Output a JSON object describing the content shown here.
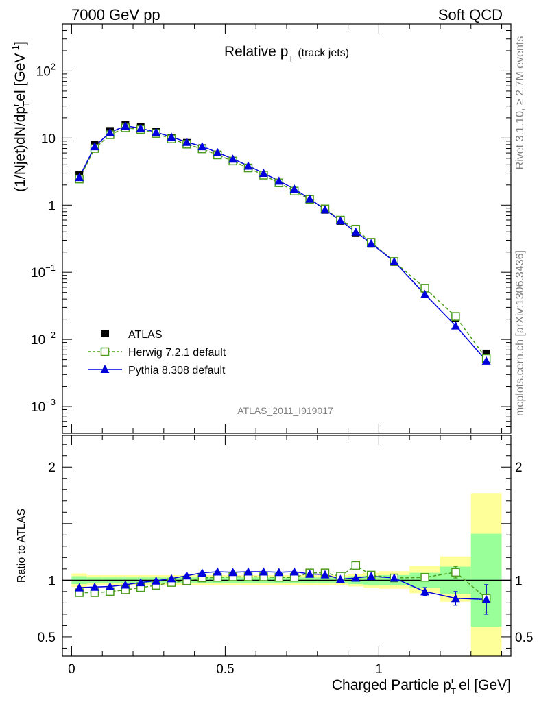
{
  "header": {
    "left": "7000 GeV pp",
    "right": "Soft QCD"
  },
  "side": {
    "rivet": "Rivet 3.1.10, ≥ 2.7M events",
    "mcplots": "mcplots.cern.ch [arXiv:1306.3436]"
  },
  "chart_data": {
    "type": "scatter",
    "title_main": "Relative p",
    "title_sub": "T",
    "title_extra": "(track jets)",
    "analysis_id": "ATLAS_2011_I919017",
    "ylabel": "(1/Njet)dN/dp",
    "ylabel_sub": "T",
    "ylabel_sup": "r",
    "ylabel_tail": "el [GeV",
    "ylabel_unit_sup": "-1",
    "ylabel_close": "]",
    "ratio_ylabel": "Ratio to ATLAS",
    "xlabel": "Charged Particle p",
    "xlabel_sub": "T",
    "xlabel_sup": "r",
    "xlabel_tail": "el [GeV]",
    "xlim": [
      -0.03,
      1.43
    ],
    "ylim_log": [
      0.0004,
      500
    ],
    "ratio_ylim": [
      0.33,
      2.28
    ],
    "x_ticks": [
      {
        "value": 0,
        "label": "0"
      },
      {
        "value": 0.5,
        "label": "0.5"
      },
      {
        "value": 1,
        "label": "1"
      }
    ],
    "y_ticks": [
      {
        "value": 100,
        "base": "10",
        "exp": "2"
      },
      {
        "value": 10,
        "base": "10",
        "exp": ""
      },
      {
        "value": 1,
        "base": "1",
        "exp": ""
      },
      {
        "value": 0.1,
        "base": "10",
        "exp": "−1"
      },
      {
        "value": 0.01,
        "base": "10",
        "exp": "−2"
      },
      {
        "value": 0.001,
        "base": "10",
        "exp": "−3"
      }
    ],
    "ratio_ticks": [
      {
        "value": 2,
        "label": "2"
      },
      {
        "value": 1,
        "label": "1"
      },
      {
        "value": 0.5,
        "label": "0.5"
      }
    ],
    "x": [
      0.025,
      0.075,
      0.125,
      0.175,
      0.225,
      0.275,
      0.325,
      0.375,
      0.425,
      0.475,
      0.525,
      0.575,
      0.625,
      0.675,
      0.725,
      0.775,
      0.825,
      0.875,
      0.925,
      0.975,
      1.05,
      1.15,
      1.25,
      1.35
    ],
    "x_bins": [
      0.0,
      0.05,
      0.1,
      0.15,
      0.2,
      0.25,
      0.3,
      0.35,
      0.4,
      0.45,
      0.5,
      0.55,
      0.6,
      0.65,
      0.7,
      0.75,
      0.8,
      0.85,
      0.9,
      0.95,
      1.0,
      1.1,
      1.2,
      1.3,
      1.4
    ],
    "series": [
      {
        "name": "ATLAS",
        "color": "#000000",
        "style": "filled-square",
        "values": [
          2.8,
          8.0,
          12.8,
          15.8,
          14.6,
          12.5,
          10.2,
          8.5,
          7.1,
          5.7,
          4.6,
          3.6,
          2.8,
          2.15,
          1.63,
          1.18,
          0.85,
          0.58,
          0.39,
          0.265,
          0.142,
          0.057,
          0.021,
          0.0062
        ],
        "band_stat_low": [
          0.965,
          0.975,
          0.975,
          0.975,
          0.975,
          0.975,
          0.975,
          0.975,
          0.975,
          0.975,
          0.975,
          0.975,
          0.975,
          0.975,
          0.975,
          0.975,
          0.975,
          0.975,
          0.965,
          0.96,
          0.955,
          0.935,
          0.88,
          0.59
        ],
        "band_stat_high": [
          1.035,
          1.025,
          1.025,
          1.025,
          1.025,
          1.025,
          1.025,
          1.025,
          1.025,
          1.025,
          1.025,
          1.025,
          1.025,
          1.025,
          1.025,
          1.025,
          1.025,
          1.025,
          1.035,
          1.04,
          1.045,
          1.065,
          1.12,
          1.41
        ],
        "band_tot_low": [
          0.94,
          0.955,
          0.955,
          0.955,
          0.955,
          0.955,
          0.955,
          0.955,
          0.955,
          0.955,
          0.955,
          0.955,
          0.955,
          0.955,
          0.955,
          0.955,
          0.955,
          0.955,
          0.945,
          0.935,
          0.925,
          0.885,
          0.81,
          0.33
        ],
        "band_tot_high": [
          1.06,
          1.045,
          1.045,
          1.045,
          1.045,
          1.045,
          1.045,
          1.045,
          1.045,
          1.045,
          1.045,
          1.045,
          1.045,
          1.045,
          1.045,
          1.045,
          1.045,
          1.045,
          1.055,
          1.065,
          1.08,
          1.125,
          1.21,
          1.77
        ]
      },
      {
        "name": "Herwig 7.2.1 default",
        "color": "#4c9c1c",
        "style": "open-square-dashed",
        "values": [
          2.45,
          7.0,
          11.2,
          14.2,
          13.4,
          11.7,
          9.7,
          8.1,
          6.9,
          5.6,
          4.55,
          3.58,
          2.8,
          2.15,
          1.62,
          1.22,
          0.88,
          0.6,
          0.44,
          0.28,
          0.145,
          0.058,
          0.022,
          0.0052
        ],
        "ratio": [
          0.89,
          0.89,
          0.9,
          0.915,
          0.935,
          0.955,
          0.98,
          0.995,
          1.02,
          1.025,
          1.03,
          1.03,
          1.03,
          1.025,
          1.025,
          1.065,
          1.065,
          1.035,
          1.13,
          1.045,
          1.02,
          1.025,
          1.07,
          0.84
        ],
        "ratio_err": [
          0.01,
          0.01,
          0.01,
          0.01,
          0.01,
          0.01,
          0.01,
          0.01,
          0.01,
          0.01,
          0.01,
          0.01,
          0.01,
          0.01,
          0.01,
          0.01,
          0.01,
          0.01,
          0.012,
          0.015,
          0.02,
          0.03,
          0.05,
          0.12
        ]
      },
      {
        "name": "Pythia 8.308 default",
        "color": "#0000dd",
        "style": "filled-triangle-solid",
        "values": [
          2.6,
          7.5,
          12.1,
          15.2,
          14.0,
          12.2,
          10.4,
          8.7,
          7.5,
          6.1,
          4.9,
          3.85,
          3.0,
          2.3,
          1.75,
          1.24,
          0.86,
          0.59,
          0.4,
          0.27,
          0.145,
          0.047,
          0.016,
          0.0048
        ],
        "ratio": [
          0.935,
          0.94,
          0.945,
          0.96,
          0.98,
          0.995,
          1.015,
          1.04,
          1.065,
          1.075,
          1.07,
          1.075,
          1.075,
          1.07,
          1.075,
          1.055,
          1.05,
          1.01,
          1.02,
          1.035,
          1.02,
          0.9,
          0.84,
          0.83
        ],
        "ratio_err": [
          0.01,
          0.01,
          0.01,
          0.01,
          0.01,
          0.01,
          0.01,
          0.01,
          0.01,
          0.01,
          0.01,
          0.01,
          0.01,
          0.01,
          0.01,
          0.01,
          0.01,
          0.01,
          0.012,
          0.015,
          0.02,
          0.035,
          0.06,
          0.13
        ]
      }
    ],
    "legend_position": "lower-left"
  }
}
